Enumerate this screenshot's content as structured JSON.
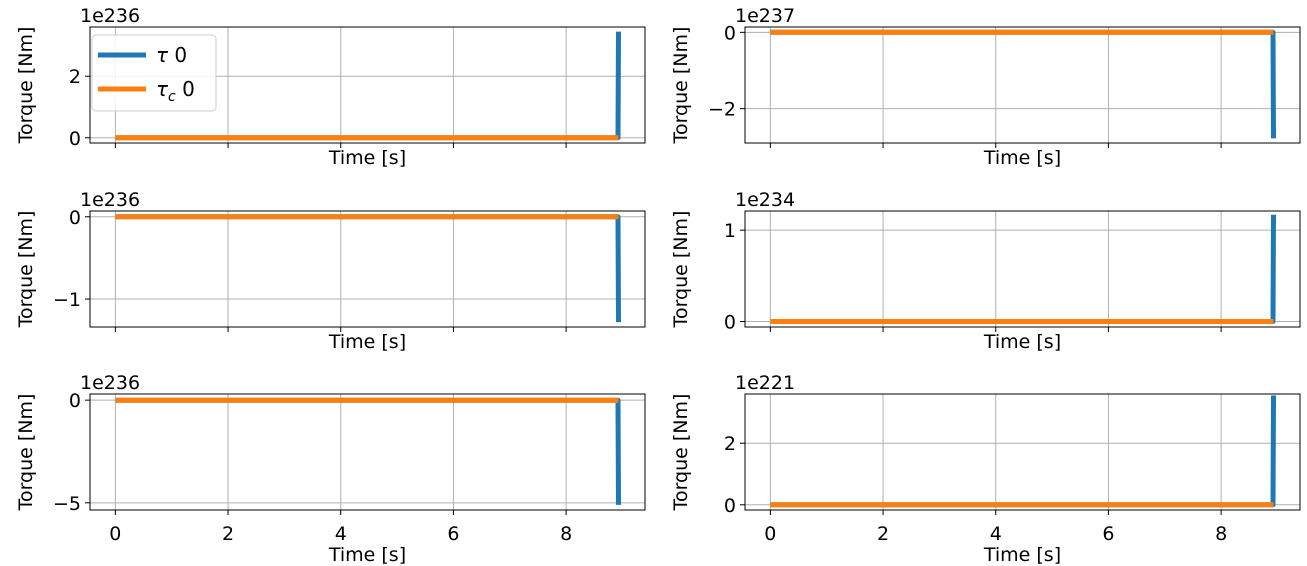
{
  "figure": {
    "legend": {
      "placement": "upper-left",
      "entries": [
        {
          "label_main": "τ",
          "label_sub": "",
          "label_tail": " 0",
          "color": "#1f77b4"
        },
        {
          "label_main": "τ",
          "label_sub": "c",
          "label_tail": " 0",
          "color": "#ff7f0e"
        }
      ]
    }
  },
  "chart_data": [
    {
      "type": "line",
      "xlabel": "Time [s]",
      "ylabel": "Torque [Nm]",
      "offset_label": "1e236",
      "xlim": [
        -0.45,
        9.4
      ],
      "ylim": [
        -0.17,
        3.6
      ],
      "xticks": [
        0,
        2,
        4,
        6,
        8
      ],
      "show_xticklabels": false,
      "yticks": [
        0,
        2
      ],
      "ytick_labels": [
        "0",
        "2"
      ],
      "grid": true,
      "series": [
        {
          "name": "τ 0",
          "color": "#1f77b4",
          "x": [
            0,
            8.9,
            8.92,
            8.93
          ],
          "y": [
            0,
            0,
            0,
            3.45
          ]
        },
        {
          "name": "τc 0",
          "color": "#ff7f0e",
          "x": [
            0,
            8.93
          ],
          "y": [
            0,
            0
          ]
        }
      ]
    },
    {
      "type": "line",
      "xlabel": "Time [s]",
      "ylabel": "Torque [Nm]",
      "offset_label": "1e237",
      "xlim": [
        -0.45,
        9.4
      ],
      "ylim": [
        -2.9,
        0.14
      ],
      "xticks": [
        0,
        2,
        4,
        6,
        8
      ],
      "show_xticklabels": false,
      "yticks": [
        0,
        -2
      ],
      "ytick_labels": [
        "0",
        "−2"
      ],
      "grid": true,
      "series": [
        {
          "name": "τ 0",
          "color": "#1f77b4",
          "x": [
            0,
            8.9,
            8.92,
            8.93
          ],
          "y": [
            0,
            0,
            0,
            -2.78
          ]
        },
        {
          "name": "τc 0",
          "color": "#ff7f0e",
          "x": [
            0,
            8.93
          ],
          "y": [
            0,
            0
          ]
        }
      ]
    },
    {
      "type": "line",
      "xlabel": "Time [s]",
      "ylabel": "Torque [Nm]",
      "offset_label": "1e236",
      "xlim": [
        -0.45,
        9.4
      ],
      "ylim": [
        -1.34,
        0.07
      ],
      "xticks": [
        0,
        2,
        4,
        6,
        8
      ],
      "show_xticklabels": false,
      "yticks": [
        0,
        -1
      ],
      "ytick_labels": [
        "0",
        "−1"
      ],
      "grid": true,
      "series": [
        {
          "name": "τ 0",
          "color": "#1f77b4",
          "x": [
            0,
            8.9,
            8.92,
            8.93
          ],
          "y": [
            0,
            0,
            0,
            -1.28
          ]
        },
        {
          "name": "τc 0",
          "color": "#ff7f0e",
          "x": [
            0,
            8.93
          ],
          "y": [
            0,
            0
          ]
        }
      ]
    },
    {
      "type": "line",
      "xlabel": "Time [s]",
      "ylabel": "Torque [Nm]",
      "offset_label": "1e234",
      "xlim": [
        -0.45,
        9.4
      ],
      "ylim": [
        -0.06,
        1.21
      ],
      "xticks": [
        0,
        2,
        4,
        6,
        8
      ],
      "show_xticklabels": false,
      "yticks": [
        0,
        1
      ],
      "ytick_labels": [
        "0",
        "1"
      ],
      "grid": true,
      "series": [
        {
          "name": "τ 0",
          "color": "#1f77b4",
          "x": [
            0,
            8.9,
            8.92,
            8.93
          ],
          "y": [
            0,
            0,
            0,
            1.17
          ]
        },
        {
          "name": "τc 0",
          "color": "#ff7f0e",
          "x": [
            0,
            8.93
          ],
          "y": [
            0,
            0
          ]
        }
      ]
    },
    {
      "type": "line",
      "xlabel": "Time [s]",
      "ylabel": "Torque [Nm]",
      "offset_label": "1e236",
      "xlim": [
        -0.45,
        9.4
      ],
      "ylim": [
        -5.35,
        0.3
      ],
      "xticks": [
        0,
        2,
        4,
        6,
        8
      ],
      "show_xticklabels": true,
      "xtick_labels": [
        "0",
        "2",
        "4",
        "6",
        "8"
      ],
      "yticks": [
        0,
        -5
      ],
      "ytick_labels": [
        "0",
        "−5"
      ],
      "grid": true,
      "series": [
        {
          "name": "τ 0",
          "color": "#1f77b4",
          "x": [
            0,
            8.9,
            8.92,
            8.93
          ],
          "y": [
            0,
            0,
            0,
            -5.1
          ]
        },
        {
          "name": "τc 0",
          "color": "#ff7f0e",
          "x": [
            0,
            8.93
          ],
          "y": [
            0,
            0
          ]
        }
      ]
    },
    {
      "type": "line",
      "xlabel": "Time [s]",
      "ylabel": "Torque [Nm]",
      "offset_label": "1e221",
      "xlim": [
        -0.45,
        9.4
      ],
      "ylim": [
        -0.17,
        3.6
      ],
      "xticks": [
        0,
        2,
        4,
        6,
        8
      ],
      "show_xticklabels": true,
      "xtick_labels": [
        "0",
        "2",
        "4",
        "6",
        "8"
      ],
      "yticks": [
        0,
        2
      ],
      "ytick_labels": [
        "0",
        "2"
      ],
      "grid": true,
      "series": [
        {
          "name": "τ 0",
          "color": "#1f77b4",
          "x": [
            0,
            8.9,
            8.92,
            8.93
          ],
          "y": [
            0,
            0,
            0,
            3.55
          ]
        },
        {
          "name": "τc 0",
          "color": "#ff7f0e",
          "x": [
            0,
            8.93
          ],
          "y": [
            0,
            0
          ]
        }
      ]
    }
  ]
}
